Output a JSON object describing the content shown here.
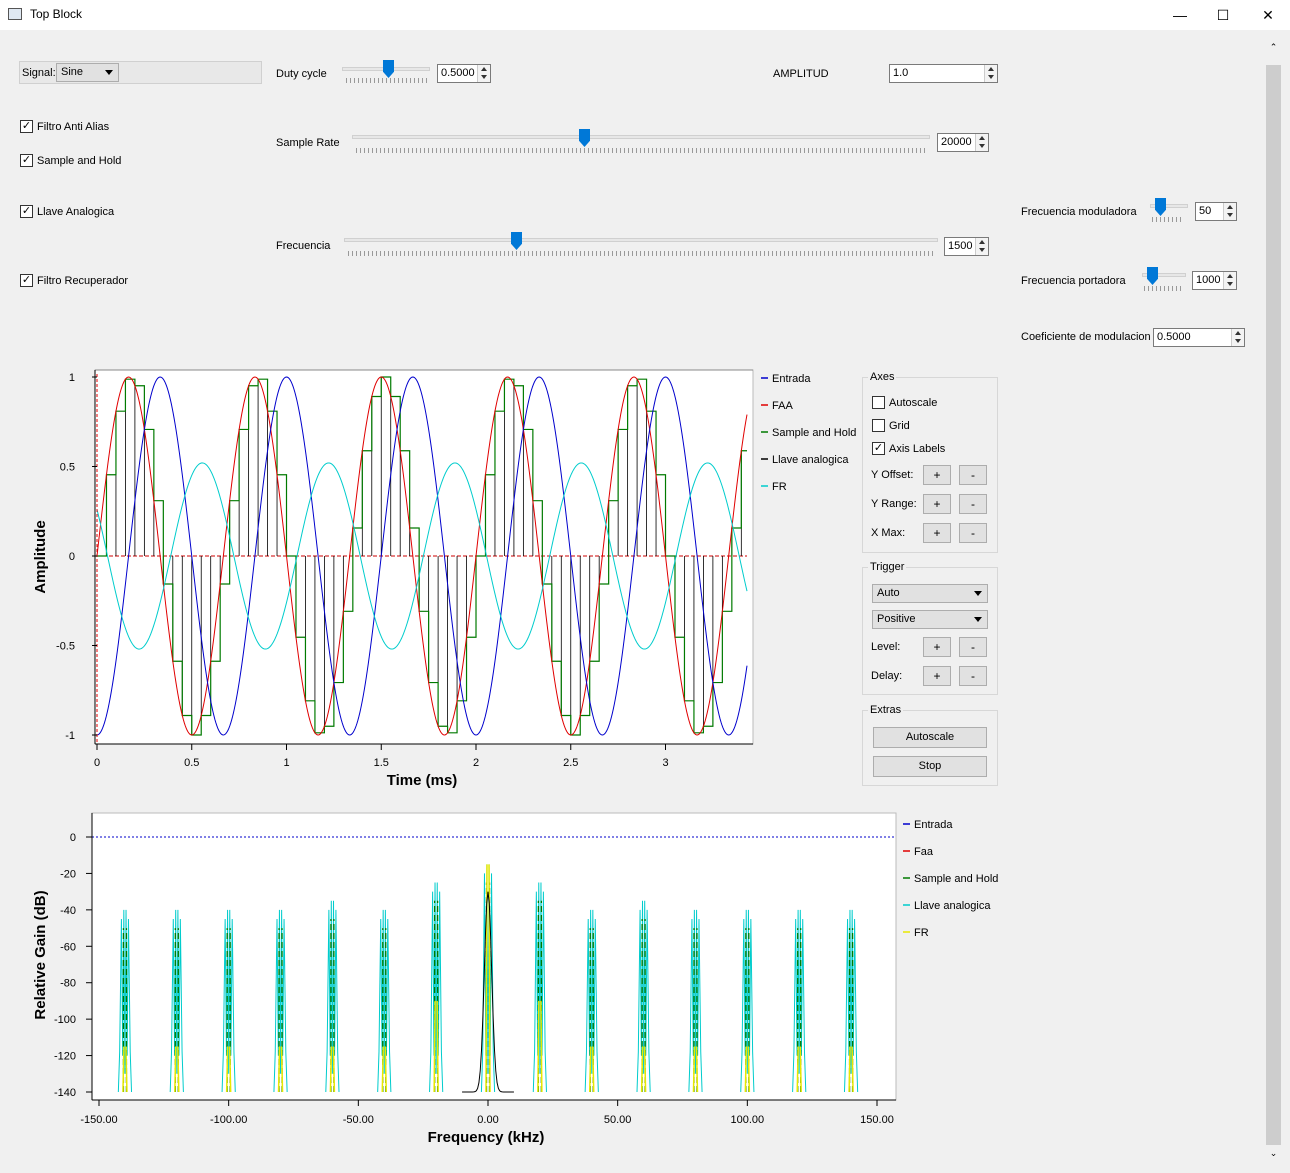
{
  "window": {
    "title": "Top Block",
    "minimize": "—",
    "maximize": "☐",
    "close": "✕"
  },
  "controls": {
    "signal_label": "Signal:",
    "signal_value": "Sine",
    "filtro_anti_alias": "Filtro Anti Alias",
    "sample_and_hold": "Sample and Hold",
    "llave_analogica": "Llave Analogica",
    "filtro_recuperador": "Filtro Recuperador",
    "duty_cycle_label": "Duty cycle",
    "duty_cycle_value": "0.5000",
    "amplitud_label": "AMPLITUD",
    "amplitud_value": "1.0",
    "sample_rate_label": "Sample Rate",
    "sample_rate_value": "20000",
    "frecuencia_label": "Frecuencia",
    "frecuencia_value": "1500",
    "frec_moduladora_label": "Frecuencia moduladora",
    "frec_moduladora_value": "50",
    "frec_portadora_label": "Frecuencia portadora",
    "frec_portadora_value": "1000",
    "coef_modulacion_label": "Coeficiente de modulacion",
    "coef_modulacion_value": "0.5000"
  },
  "time_panel": {
    "axes_title": "Axes",
    "autoscale": "Autoscale",
    "grid": "Grid",
    "axis_labels": "Axis Labels",
    "y_offset": "Y Offset:",
    "y_range": "Y Range:",
    "x_max": "X Max:",
    "plus": "+",
    "minus": "-",
    "trigger_title": "Trigger",
    "trigger_mode": "Auto",
    "trigger_slope": "Positive",
    "level": "Level:",
    "delay": "Delay:",
    "extras_title": "Extras",
    "extras_autoscale": "Autoscale",
    "stop": "Stop"
  },
  "colors": {
    "blue": "#0000cc",
    "red": "#e00000",
    "green": "#007a00",
    "black": "#000000",
    "cyan": "#00cccc",
    "yellow": "#e8e800"
  },
  "chart_data": [
    {
      "type": "line",
      "title": "",
      "xlabel": "Time (ms)",
      "ylabel": "Amplitude",
      "xlim": [
        0,
        3.43
      ],
      "ylim": [
        -1,
        1
      ],
      "xticks": [
        "0",
        "0.5",
        "1",
        "1.5",
        "2",
        "2.5",
        "3"
      ],
      "yticks": [
        "1",
        "0.5",
        "0",
        "-0.5",
        "-1"
      ],
      "grid": false,
      "legend_position": "right",
      "series": [
        {
          "name": "Entrada",
          "color": "#0000cc",
          "description_freq_khz": 1.5,
          "amplitude": 1.0,
          "phase_deg": -90
        },
        {
          "name": "FAA",
          "color": "#e00000",
          "description_freq_khz": 1.5,
          "amplitude": 1.0,
          "phase_deg": 0
        },
        {
          "name": "Sample and Hold",
          "color": "#007a00",
          "description_freq_khz": 1.5,
          "amplitude": 1.0,
          "phase_deg": 0
        },
        {
          "name": "Llave analogica",
          "color": "#000000",
          "description_freq_khz": 1.5,
          "amplitude": 1.0,
          "phase_deg": 0
        },
        {
          "name": "FR",
          "color": "#00cccc",
          "description_freq_khz": 1.5,
          "amplitude": 0.52,
          "phase_deg": 150
        }
      ]
    },
    {
      "type": "line",
      "title": "",
      "xlabel": "Frequency (kHz)",
      "ylabel": "Relative Gain (dB)",
      "xlim": [
        -150,
        150
      ],
      "ylim": [
        -140,
        0
      ],
      "xticks": [
        "-150.00",
        "-100.00",
        "-50.00",
        "0.00",
        "50.00",
        "100.00",
        "150.00"
      ],
      "yticks": [
        "0",
        "-20",
        "-40",
        "-60",
        "-80",
        "-100",
        "-120",
        "-140"
      ],
      "grid": false,
      "legend_position": "right",
      "series": [
        {
          "name": "Entrada",
          "color": "#0000cc"
        },
        {
          "name": "Faa",
          "color": "#e00000"
        },
        {
          "name": "Sample and Hold",
          "color": "#007a00"
        },
        {
          "name": "Llave analogica",
          "color": "#00cccc"
        },
        {
          "name": "FR",
          "color": "#e8e800"
        }
      ],
      "peaks_khz": [
        -140,
        -120,
        -100,
        -80,
        -60,
        -40,
        -20,
        0,
        20,
        40,
        60,
        80,
        100,
        120,
        140
      ],
      "peak_levels_db": [
        -40,
        -40,
        -40,
        -40,
        -35,
        -40,
        -25,
        -15,
        -25,
        -40,
        -35,
        -40,
        -40,
        -40,
        -40
      ]
    }
  ]
}
